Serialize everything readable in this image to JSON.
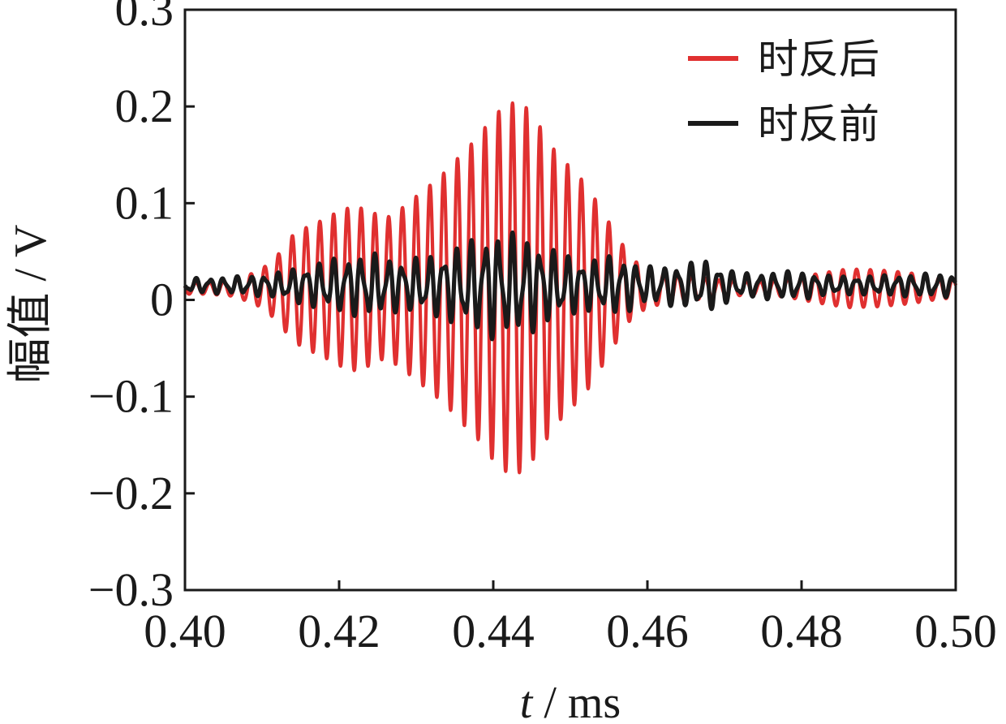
{
  "chart_data": {
    "type": "line",
    "xlabel_var": "t",
    "xlabel_unit": " / ms",
    "ylabel": "幅值 / V",
    "xlim": [
      0.4,
      0.5
    ],
    "ylim": [
      -0.3,
      0.3
    ],
    "xticks": [
      0.4,
      0.42,
      0.44,
      0.46,
      0.48,
      0.5
    ],
    "xtick_labels": [
      "0.40",
      "0.42",
      "0.44",
      "0.46",
      "0.48",
      "0.50"
    ],
    "yticks": [
      -0.3,
      -0.2,
      -0.1,
      0,
      0.1,
      0.2,
      0.3
    ],
    "ytick_labels": [
      "−0.3",
      "−0.2",
      "−0.1",
      "0",
      "0.1",
      "0.2",
      "0.3"
    ],
    "grid": false,
    "legend_position": "top-right",
    "series": [
      {
        "name": "时反后",
        "color": "#e03030",
        "x": [
          0.4,
          0.403,
          0.406,
          0.408,
          0.41,
          0.412,
          0.414,
          0.416,
          0.418,
          0.42,
          0.422,
          0.424,
          0.426,
          0.428,
          0.43,
          0.432,
          0.434,
          0.436,
          0.438,
          0.44,
          0.442,
          0.444,
          0.446,
          0.448,
          0.45,
          0.452,
          0.454,
          0.456,
          0.458,
          0.46,
          0.462,
          0.464,
          0.466,
          0.468,
          0.47,
          0.474,
          0.478,
          0.482,
          0.486,
          0.49,
          0.494,
          0.498,
          0.5
        ],
        "envelope": [
          0.006,
          0.006,
          0.008,
          0.013,
          0.02,
          0.034,
          0.055,
          0.064,
          0.071,
          0.08,
          0.085,
          0.08,
          0.072,
          0.082,
          0.095,
          0.108,
          0.122,
          0.14,
          0.156,
          0.178,
          0.192,
          0.19,
          0.168,
          0.142,
          0.125,
          0.108,
          0.082,
          0.055,
          0.03,
          0.02,
          0.016,
          0.014,
          0.012,
          0.01,
          0.008,
          0.007,
          0.009,
          0.015,
          0.02,
          0.019,
          0.016,
          0.011,
          0.01
        ],
        "offset": 0.012,
        "frequency_khz": 560
      },
      {
        "name": "时反前",
        "color": "#1a1a1a",
        "x": [
          0.4,
          0.404,
          0.408,
          0.412,
          0.416,
          0.42,
          0.424,
          0.428,
          0.432,
          0.436,
          0.44,
          0.444,
          0.448,
          0.452,
          0.456,
          0.46,
          0.464,
          0.468,
          0.472,
          0.476,
          0.48,
          0.484,
          0.488,
          0.492,
          0.496,
          0.5
        ],
        "envelope": [
          0.006,
          0.007,
          0.008,
          0.011,
          0.018,
          0.024,
          0.028,
          0.022,
          0.026,
          0.036,
          0.046,
          0.044,
          0.03,
          0.022,
          0.026,
          0.016,
          0.018,
          0.022,
          0.01,
          0.012,
          0.012,
          0.008,
          0.008,
          0.009,
          0.01,
          0.01
        ],
        "offset": 0.015,
        "frequency_khz": 560
      }
    ]
  }
}
